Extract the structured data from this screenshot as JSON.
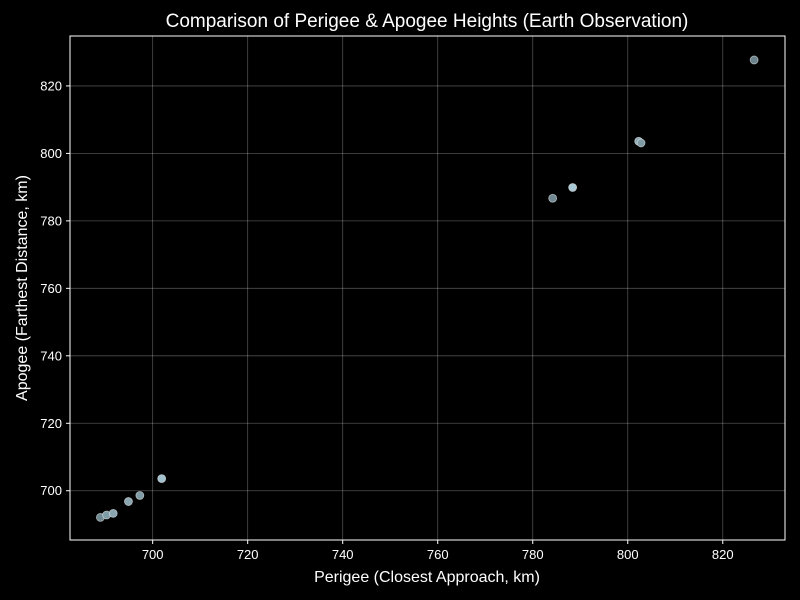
{
  "chart_data": {
    "type": "scatter",
    "title": "Comparison of Perigee & Apogee Heights (Earth Observation)",
    "xlabel": "Perigee (Closest Approach, km)",
    "ylabel": "Apogee (Farthest Distance, km)",
    "xlim": [
      682.6,
      833.1
    ],
    "ylim": [
      685.4,
      834.8
    ],
    "xticks": [
      700,
      720,
      740,
      760,
      780,
      800,
      820
    ],
    "yticks": [
      700,
      720,
      740,
      760,
      780,
      800,
      820
    ],
    "grid": true,
    "series": [
      {
        "points": [
          {
            "x": 689.0,
            "y": 692.1,
            "color": "#6f8892"
          },
          {
            "x": 690.3,
            "y": 692.8,
            "color": "#7f9ba6"
          },
          {
            "x": 691.7,
            "y": 693.3,
            "color": "#8aa6b1"
          },
          {
            "x": 694.9,
            "y": 696.8,
            "color": "#8aa6b1"
          },
          {
            "x": 697.3,
            "y": 698.6,
            "color": "#7f9ba6"
          },
          {
            "x": 701.9,
            "y": 703.6,
            "color": "#9fc0cc"
          },
          {
            "x": 784.2,
            "y": 786.7,
            "color": "#6f8892"
          },
          {
            "x": 788.4,
            "y": 789.9,
            "color": "#a8c8d4"
          },
          {
            "x": 802.3,
            "y": 803.6,
            "color": "#8aa6b1"
          },
          {
            "x": 802.8,
            "y": 803.1,
            "color": "#7f9ba6"
          },
          {
            "x": 826.6,
            "y": 827.7,
            "color": "#6a838d"
          }
        ]
      }
    ]
  }
}
